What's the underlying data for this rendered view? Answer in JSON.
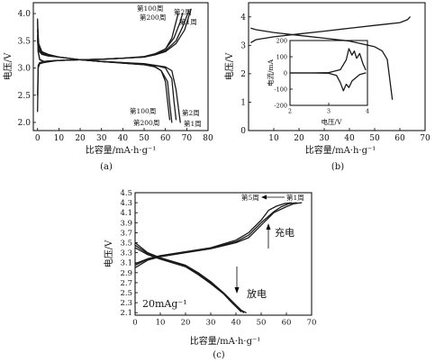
{
  "panels": {
    "a": {
      "caption": "(a)",
      "ylabel": "电压/V",
      "xlabel": "比容量/mA·h·g⁻¹",
      "charge_labels": [
        "第100周",
        "第200周",
        "第2周",
        "第1周"
      ],
      "discharge_labels": [
        "第100周",
        "第200周",
        "第2周",
        "第1周"
      ]
    },
    "b": {
      "caption": "(b)",
      "ylabel": "电压/V",
      "xlabel": "比容量/mA·h·g⁻¹",
      "inset": {
        "ylabel": "电流/mA",
        "xlabel": "电压/V"
      }
    },
    "c": {
      "caption": "(c)",
      "ylabel": "电压/V",
      "xlabel": "比容量/mA·h·g⁻¹",
      "cycle_label_5": "第5周",
      "cycle_label_1": "第1周",
      "charge_label": "充电",
      "discharge_label": "放电",
      "rate_label": "20mAg⁻¹"
    }
  },
  "chart_data": [
    {
      "id": "a",
      "type": "line",
      "xlim": [
        -2,
        80
      ],
      "ylim": [
        1.85,
        4.2
      ],
      "xticks": [
        0,
        10,
        20,
        30,
        40,
        50,
        60,
        70,
        80
      ],
      "yticks": [
        2.0,
        2.5,
        3.0,
        3.5,
        4.0
      ],
      "series": [
        {
          "x": [
            0,
            0.3,
            1,
            3,
            6,
            10,
            20,
            30,
            40,
            50,
            55,
            60,
            63,
            65,
            66
          ],
          "y": [
            2.2,
            3.0,
            3.08,
            3.1,
            3.12,
            3.14,
            3.15,
            3.16,
            3.18,
            3.2,
            3.25,
            3.35,
            3.55,
            3.85,
            4.0
          ]
        },
        {
          "x": [
            0,
            0.3,
            1,
            3,
            6,
            10,
            20,
            30,
            40,
            50,
            55,
            60,
            64,
            67,
            68
          ],
          "y": [
            2.5,
            3.05,
            3.1,
            3.12,
            3.13,
            3.14,
            3.15,
            3.16,
            3.18,
            3.21,
            3.26,
            3.35,
            3.55,
            3.85,
            4.0
          ]
        },
        {
          "x": [
            0,
            0.3,
            1,
            3,
            6,
            10,
            20,
            30,
            40,
            50,
            55,
            60,
            65,
            68,
            71
          ],
          "y": [
            3.9,
            3.3,
            3.15,
            3.12,
            3.13,
            3.14,
            3.15,
            3.16,
            3.18,
            3.2,
            3.25,
            3.32,
            3.5,
            3.75,
            4.05
          ]
        },
        {
          "x": [
            0,
            0.3,
            1,
            3,
            6,
            10,
            20,
            30,
            40,
            50,
            55,
            60,
            65,
            69,
            72
          ],
          "y": [
            3.55,
            3.3,
            3.16,
            3.12,
            3.13,
            3.14,
            3.15,
            3.16,
            3.18,
            3.2,
            3.24,
            3.3,
            3.45,
            3.7,
            4.08
          ]
        },
        {
          "x": [
            0,
            0.5,
            2,
            5,
            10,
            20,
            30,
            40,
            50,
            55,
            58,
            60,
            61,
            62
          ],
          "y": [
            3.85,
            3.45,
            3.3,
            3.25,
            3.2,
            3.15,
            3.12,
            3.09,
            3.06,
            3.02,
            2.95,
            2.75,
            2.4,
            2.05
          ]
        },
        {
          "x": [
            0,
            0.5,
            2,
            5,
            10,
            20,
            30,
            40,
            50,
            55,
            58,
            61,
            62,
            63
          ],
          "y": [
            3.7,
            3.4,
            3.28,
            3.24,
            3.2,
            3.15,
            3.12,
            3.09,
            3.06,
            3.03,
            2.95,
            2.75,
            2.35,
            2.0
          ]
        },
        {
          "x": [
            0,
            0.5,
            2,
            5,
            10,
            20,
            30,
            40,
            50,
            55,
            60,
            63,
            64,
            65
          ],
          "y": [
            3.6,
            3.35,
            3.26,
            3.23,
            3.2,
            3.15,
            3.12,
            3.1,
            3.07,
            3.05,
            3.0,
            2.8,
            2.4,
            2.05
          ]
        },
        {
          "x": [
            0,
            0.5,
            2,
            5,
            10,
            20,
            30,
            40,
            50,
            55,
            60,
            63,
            65,
            67
          ],
          "y": [
            3.5,
            3.32,
            3.25,
            3.22,
            3.2,
            3.15,
            3.12,
            3.1,
            3.08,
            3.05,
            3.02,
            2.95,
            2.6,
            2.0
          ]
        }
      ]
    },
    {
      "id": "b",
      "type": "line",
      "xlim": [
        0,
        70
      ],
      "ylim": [
        0,
        4.5
      ],
      "xticks": [
        10,
        20,
        30,
        40,
        50,
        60,
        70
      ],
      "yticks": [
        0,
        1,
        2,
        3,
        4
      ],
      "series": [
        {
          "x": [
            1,
            3,
            10,
            20,
            30,
            40,
            50,
            55,
            60,
            63,
            64
          ],
          "y": [
            3.1,
            3.2,
            3.3,
            3.4,
            3.5,
            3.6,
            3.7,
            3.75,
            3.8,
            3.9,
            4.0
          ]
        },
        {
          "x": [
            1,
            3,
            10,
            20,
            30,
            40,
            50,
            53,
            55,
            56,
            57
          ],
          "y": [
            3.6,
            3.55,
            3.45,
            3.35,
            3.25,
            3.15,
            2.95,
            2.8,
            2.5,
            1.8,
            1.1
          ]
        }
      ],
      "inset": {
        "type": "line",
        "xlim": [
          2,
          4
        ],
        "ylim": [
          -200,
          200
        ],
        "xticks": [
          2,
          3,
          4
        ],
        "yticks": [
          -200,
          -100,
          0,
          100,
          200
        ],
        "series": [
          {
            "x": [
              2.0,
              2.5,
              3.0,
              3.3,
              3.45,
              3.52,
              3.6,
              3.66,
              3.72,
              3.8,
              3.88,
              3.95
            ],
            "y": [
              0,
              0,
              2,
              20,
              80,
              150,
              110,
              135,
              90,
              120,
              60,
              20
            ]
          },
          {
            "x": [
              2.0,
              2.5,
              3.0,
              3.2,
              3.3,
              3.38,
              3.45,
              3.52,
              3.6,
              3.7,
              3.8,
              3.95
            ],
            "y": [
              0,
              0,
              -2,
              -15,
              -60,
              -110,
              -70,
              -90,
              -50,
              -30,
              -10,
              0
            ]
          }
        ]
      }
    },
    {
      "id": "c",
      "type": "line",
      "xlim": [
        0,
        70
      ],
      "ylim": [
        2.05,
        4.5
      ],
      "xticks": [
        0,
        10,
        20,
        30,
        40,
        50,
        60,
        70
      ],
      "yticks": [
        2.1,
        2.3,
        2.5,
        2.7,
        2.9,
        3.1,
        3.3,
        3.5,
        3.7,
        3.9,
        4.1,
        4.3,
        4.5
      ],
      "series": [
        {
          "x": [
            0,
            5,
            10,
            20,
            30,
            40,
            45,
            50,
            55,
            60,
            63,
            66
          ],
          "y": [
            3.0,
            3.15,
            3.22,
            3.3,
            3.38,
            3.5,
            3.6,
            3.85,
            4.1,
            4.22,
            4.28,
            4.3
          ]
        },
        {
          "x": [
            0,
            5,
            10,
            20,
            30,
            40,
            45,
            50,
            55,
            58,
            61,
            64
          ],
          "y": [
            3.05,
            3.17,
            3.23,
            3.31,
            3.39,
            3.52,
            3.65,
            3.9,
            4.12,
            4.22,
            4.28,
            4.3
          ]
        },
        {
          "x": [
            0,
            5,
            10,
            20,
            30,
            40,
            45,
            50,
            53,
            56,
            59,
            62
          ],
          "y": [
            3.08,
            3.18,
            3.24,
            3.32,
            3.4,
            3.55,
            3.7,
            3.95,
            4.15,
            4.23,
            4.28,
            4.3
          ]
        },
        {
          "x": [
            0,
            5,
            10,
            20,
            25,
            30,
            35,
            38,
            40,
            42,
            43
          ],
          "y": [
            3.5,
            3.3,
            3.2,
            3.05,
            2.9,
            2.72,
            2.5,
            2.35,
            2.25,
            2.15,
            2.1
          ]
        },
        {
          "x": [
            0,
            5,
            10,
            20,
            25,
            30,
            35,
            38,
            40,
            42,
            44
          ],
          "y": [
            3.45,
            3.28,
            3.18,
            3.03,
            2.88,
            2.7,
            2.5,
            2.35,
            2.25,
            2.15,
            2.1
          ]
        },
        {
          "x": [
            0,
            5,
            10,
            20,
            25,
            30,
            35,
            38,
            40,
            42
          ],
          "y": [
            3.4,
            3.26,
            3.17,
            3.02,
            2.86,
            2.68,
            2.48,
            2.32,
            2.22,
            2.12
          ]
        }
      ]
    }
  ]
}
